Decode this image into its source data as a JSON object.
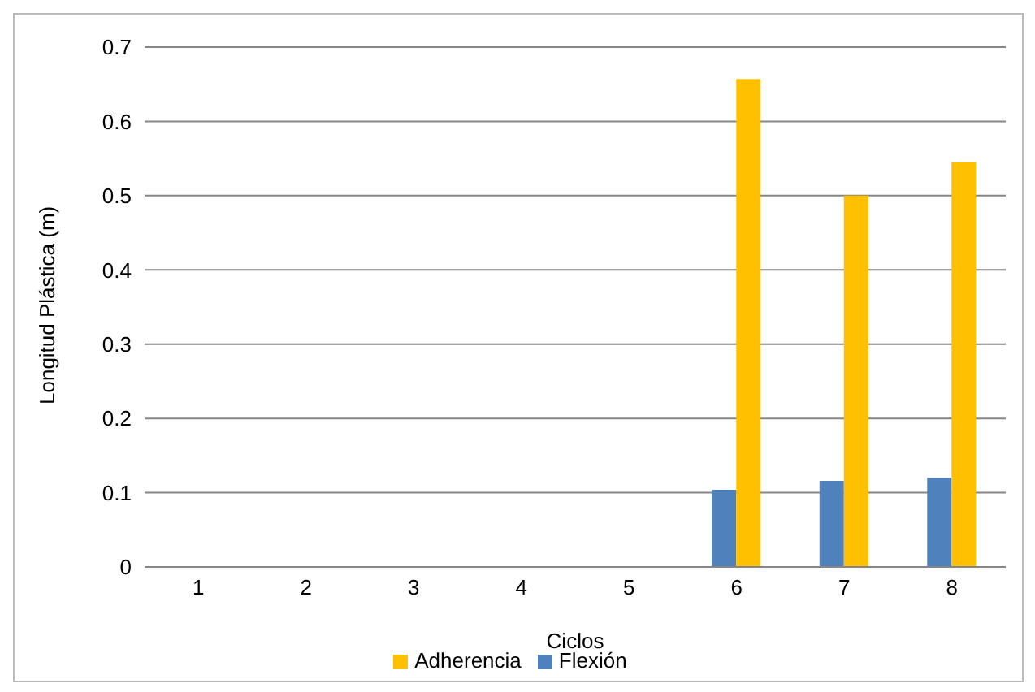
{
  "chart_data": {
    "type": "bar",
    "xlabel": "Ciclos",
    "ylabel": "Longitud Plástica (m)",
    "categories": [
      "1",
      "2",
      "3",
      "4",
      "5",
      "6",
      "7",
      "8"
    ],
    "series": [
      {
        "name": "Flexión",
        "color": "#4f81bd",
        "values": [
          0,
          0,
          0,
          0,
          0,
          0.104,
          0.116,
          0.12
        ]
      },
      {
        "name": "Adherencia",
        "color": "#ffc000",
        "values": [
          0,
          0,
          0,
          0,
          0,
          0.657,
          0.5,
          0.545
        ]
      }
    ],
    "ylim": [
      0,
      0.7
    ],
    "yticks": [
      0,
      0.1,
      0.2,
      0.3,
      0.4,
      0.5,
      0.6,
      0.7
    ],
    "grid": "y",
    "legend": "bottom"
  }
}
